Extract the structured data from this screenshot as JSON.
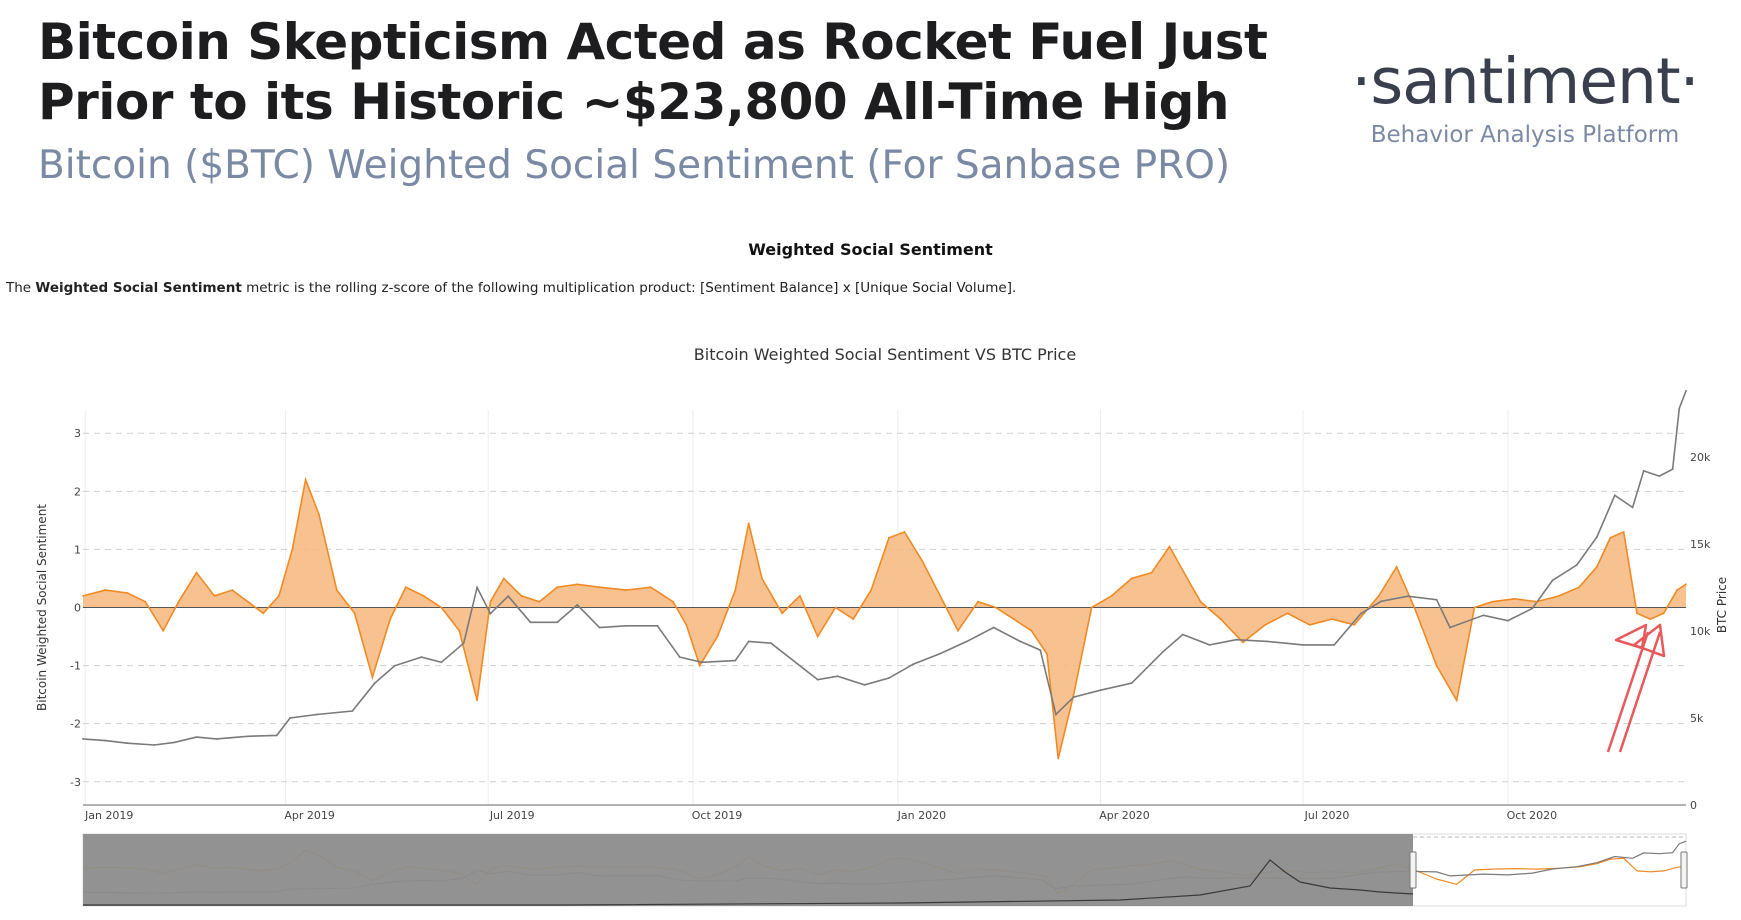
{
  "header": {
    "headline_line1": "Bitcoin Skepticism Acted as Rocket Fuel Just",
    "headline_line2": "Prior to its Historic ~$23,800 All-Time High",
    "subtitle": "Bitcoin ($BTC) Weighted Social Sentiment (For Sanbase PRO)"
  },
  "brand": {
    "logo_text": "·santiment·",
    "tagline": "Behavior Analysis Platform"
  },
  "section": {
    "title": "Weighted Social Sentiment",
    "desc_prefix": "The ",
    "desc_bold": "Weighted Social Sentiment",
    "desc_suffix": " metric is the rolling z-score of the following multiplication product: [Sentiment Balance] x [Unique Social Volume]."
  },
  "colors": {
    "sentiment": "#f08a24",
    "sentiment_fill": "#f6b77c",
    "price": "#7a7a7a",
    "arrow": "#e8595c",
    "navigator_mask": "#8c8c8c"
  },
  "chart_data": {
    "type": "area",
    "title": "Bitcoin Weighted Social Sentiment VS BTC Price",
    "x_ticks": [
      "Jan 2019",
      "Apr 2019",
      "Jul 2019",
      "Oct 2019",
      "Jan 2020",
      "Apr 2020",
      "Jul 2020",
      "Oct 2020"
    ],
    "xlim": [
      "2018-12-31",
      "2020-12-20"
    ],
    "y_left": {
      "label": "Bitcoin Weighted Social Sentiment",
      "ticks": [
        3,
        2,
        1,
        0,
        -1,
        -2,
        -3
      ],
      "ylim": [
        -3.4,
        3.4
      ]
    },
    "y_right": {
      "label": "BTC Price",
      "ticks": [
        "20k",
        "15k",
        "10k",
        "5k",
        "0"
      ],
      "tick_values": [
        20000,
        15000,
        10000,
        5000,
        0
      ],
      "ylim": [
        0,
        22700
      ]
    },
    "series": [
      {
        "name": "Bitcoin Weighted Social Sentiment",
        "axis": "left",
        "x": [
          "2018-12-31",
          "2019-01-10",
          "2019-01-20",
          "2019-01-28",
          "2019-02-05",
          "2019-02-12",
          "2019-02-20",
          "2019-02-28",
          "2019-03-08",
          "2019-03-15",
          "2019-03-22",
          "2019-03-29",
          "2019-04-04",
          "2019-04-10",
          "2019-04-16",
          "2019-04-24",
          "2019-05-02",
          "2019-05-10",
          "2019-05-18",
          "2019-05-25",
          "2019-06-02",
          "2019-06-10",
          "2019-06-18",
          "2019-06-26",
          "2019-07-02",
          "2019-07-08",
          "2019-07-16",
          "2019-07-24",
          "2019-08-01",
          "2019-08-10",
          "2019-08-20",
          "2019-09-01",
          "2019-09-12",
          "2019-09-22",
          "2019-09-28",
          "2019-10-04",
          "2019-10-12",
          "2019-10-20",
          "2019-10-26",
          "2019-11-01",
          "2019-11-10",
          "2019-11-18",
          "2019-11-26",
          "2019-12-04",
          "2019-12-12",
          "2019-12-20",
          "2019-12-28",
          "2020-01-04",
          "2020-01-12",
          "2020-01-20",
          "2020-01-28",
          "2020-02-06",
          "2020-02-14",
          "2020-02-22",
          "2020-03-01",
          "2020-03-08",
          "2020-03-13",
          "2020-03-20",
          "2020-03-28",
          "2020-04-06",
          "2020-04-15",
          "2020-04-24",
          "2020-05-02",
          "2020-05-10",
          "2020-05-16",
          "2020-05-25",
          "2020-06-04",
          "2020-06-14",
          "2020-06-24",
          "2020-07-04",
          "2020-07-14",
          "2020-07-24",
          "2020-08-04",
          "2020-08-12",
          "2020-08-20",
          "2020-08-30",
          "2020-09-08",
          "2020-09-16",
          "2020-09-24",
          "2020-10-04",
          "2020-10-14",
          "2020-10-24",
          "2020-11-02",
          "2020-11-10",
          "2020-11-16",
          "2020-11-22",
          "2020-11-28",
          "2020-12-04",
          "2020-12-10",
          "2020-12-16",
          "2020-12-20"
        ],
        "y": [
          0.2,
          0.3,
          0.25,
          0.1,
          -0.4,
          0.1,
          0.6,
          0.2,
          0.3,
          0.1,
          -0.1,
          0.2,
          1.0,
          2.2,
          1.6,
          0.3,
          -0.1,
          -1.2,
          -0.2,
          0.35,
          0.2,
          0.0,
          -0.4,
          -1.6,
          0.1,
          0.5,
          0.2,
          0.1,
          0.35,
          0.4,
          0.35,
          0.3,
          0.35,
          0.1,
          -0.3,
          -1.0,
          -0.5,
          0.3,
          1.45,
          0.5,
          -0.1,
          0.2,
          -0.5,
          0.0,
          -0.2,
          0.3,
          1.2,
          1.3,
          0.8,
          0.2,
          -0.4,
          0.1,
          0.0,
          -0.2,
          -0.4,
          -0.8,
          -2.6,
          -1.5,
          0.0,
          0.2,
          0.5,
          0.6,
          1.05,
          0.5,
          0.1,
          -0.2,
          -0.6,
          -0.3,
          -0.1,
          -0.3,
          -0.2,
          -0.3,
          0.2,
          0.7,
          0.0,
          -1.0,
          -1.6,
          0.0,
          0.1,
          0.15,
          0.1,
          0.2,
          0.35,
          0.7,
          1.2,
          1.3,
          -0.1,
          -0.2,
          -0.1,
          0.3,
          0.4
        ]
      },
      {
        "name": "BTC Price",
        "axis": "right",
        "x": [
          "2018-12-31",
          "2019-01-10",
          "2019-01-20",
          "2019-02-01",
          "2019-02-10",
          "2019-02-20",
          "2019-03-01",
          "2019-03-15",
          "2019-03-28",
          "2019-04-03",
          "2019-04-15",
          "2019-05-01",
          "2019-05-11",
          "2019-05-20",
          "2019-06-01",
          "2019-06-10",
          "2019-06-20",
          "2019-06-26",
          "2019-07-02",
          "2019-07-10",
          "2019-07-20",
          "2019-08-01",
          "2019-08-10",
          "2019-08-20",
          "2019-09-01",
          "2019-09-15",
          "2019-09-25",
          "2019-10-05",
          "2019-10-20",
          "2019-10-26",
          "2019-11-05",
          "2019-11-20",
          "2019-11-26",
          "2019-12-05",
          "2019-12-17",
          "2019-12-28",
          "2020-01-08",
          "2020-01-20",
          "2020-02-01",
          "2020-02-13",
          "2020-02-25",
          "2020-03-05",
          "2020-03-12",
          "2020-03-20",
          "2020-04-01",
          "2020-04-15",
          "2020-04-29",
          "2020-05-08",
          "2020-05-20",
          "2020-06-01",
          "2020-06-15",
          "2020-07-01",
          "2020-07-15",
          "2020-07-27",
          "2020-08-05",
          "2020-08-17",
          "2020-08-30",
          "2020-09-05",
          "2020-09-20",
          "2020-10-01",
          "2020-10-12",
          "2020-10-21",
          "2020-11-01",
          "2020-11-10",
          "2020-11-18",
          "2020-11-26",
          "2020-12-01",
          "2020-12-08",
          "2020-12-14",
          "2020-12-17",
          "2020-12-20"
        ],
        "y": [
          3800,
          3700,
          3550,
          3450,
          3600,
          3900,
          3800,
          3950,
          4000,
          5000,
          5200,
          5400,
          7000,
          8000,
          8500,
          8200,
          9300,
          12500,
          11000,
          12000,
          10500,
          10500,
          11500,
          10200,
          10300,
          10300,
          8500,
          8200,
          8300,
          9400,
          9300,
          7800,
          7200,
          7400,
          6900,
          7300,
          8100,
          8700,
          9400,
          10200,
          9400,
          8900,
          5200,
          6200,
          6600,
          7000,
          8800,
          9800,
          9200,
          9500,
          9400,
          9200,
          9200,
          11000,
          11700,
          12000,
          11800,
          10200,
          10900,
          10600,
          11300,
          12900,
          13800,
          15400,
          17800,
          17100,
          19200,
          18900,
          19300,
          22800,
          23800
        ]
      }
    ],
    "annotations": [
      {
        "type": "arrow",
        "count": 2,
        "target": "sentiment dip, early Dec 2020"
      }
    ],
    "navigator": {
      "type": "range-selector",
      "selected_range": [
        "2018-12-31",
        "2020-12-20"
      ]
    }
  }
}
